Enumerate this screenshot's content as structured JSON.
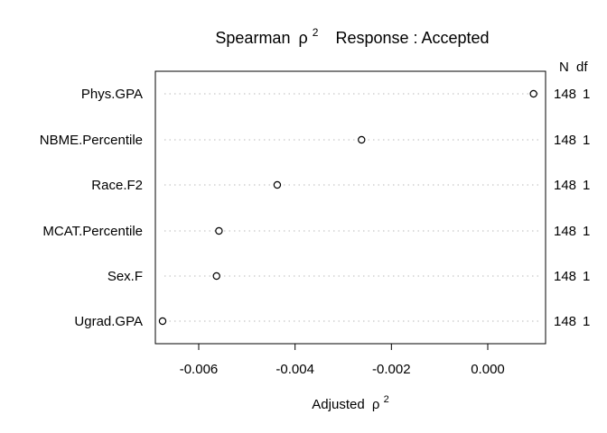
{
  "chart_data": {
    "type": "scatter",
    "title_parts": {
      "stat": "Spearman",
      "symbol": "ρ",
      "power": "2",
      "response": "Response : Accepted"
    },
    "xlabel_parts": {
      "text": "Adjusted",
      "symbol": "ρ",
      "power": "2"
    },
    "right_header": {
      "n": "N",
      "df": "df"
    },
    "xlim": [
      -0.0069,
      0.0012
    ],
    "x_ticks": [
      -0.006,
      -0.004,
      -0.002,
      0.0
    ],
    "x_tick_labels": [
      "-0.006",
      "-0.004",
      "-0.002",
      "0.000"
    ],
    "grid": "dotted horizontal lines per row",
    "rows": [
      {
        "label": "Phys.GPA",
        "value": 0.00095,
        "n": "148",
        "df": "1"
      },
      {
        "label": "NBME.Percentile",
        "value": -0.00262,
        "n": "148",
        "df": "1"
      },
      {
        "label": "Race.F2",
        "value": -0.00437,
        "n": "148",
        "df": "1"
      },
      {
        "label": "MCAT.Percentile",
        "value": -0.00558,
        "n": "148",
        "df": "1"
      },
      {
        "label": "Sex.F",
        "value": -0.00563,
        "n": "148",
        "df": "1"
      },
      {
        "label": "Ugrad.GPA",
        "value": -0.00675,
        "n": "148",
        "df": "1"
      }
    ]
  }
}
